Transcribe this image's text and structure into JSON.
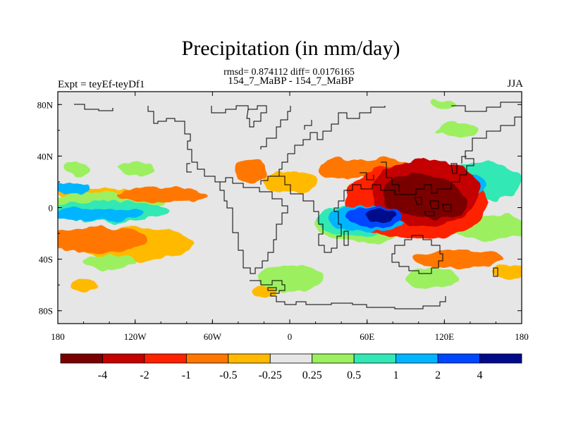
{
  "chart_data": {
    "type": "heatmap",
    "title": "Precipitation (in mm/day)",
    "stats_line": "rmsd= 0.874112 diff= 0.0176165",
    "subtitle": "154_7_MaBP - 154_7_MaBP",
    "left_label": "Expt = teyEf-teyDf1",
    "right_label": "JJA",
    "x_axis": {
      "range": [
        -180,
        180
      ],
      "ticks": [
        {
          "value": -180,
          "label": "180"
        },
        {
          "value": -120,
          "label": "120W"
        },
        {
          "value": -60,
          "label": "60W"
        },
        {
          "value": 0,
          "label": "0"
        },
        {
          "value": 60,
          "label": "60E"
        },
        {
          "value": 120,
          "label": "120E"
        },
        {
          "value": 180,
          "label": "180"
        }
      ]
    },
    "y_axis": {
      "range": [
        -90,
        90
      ],
      "ticks": [
        {
          "value": 80,
          "label": "80N"
        },
        {
          "value": 40,
          "label": "40N"
        },
        {
          "value": 0,
          "label": "0"
        },
        {
          "value": -40,
          "label": "40S"
        },
        {
          "value": -80,
          "label": "80S"
        }
      ]
    },
    "colorbar": {
      "colors": [
        "#7a0000",
        "#c40000",
        "#ff2200",
        "#ff7700",
        "#ffba00",
        "#e6e6e6",
        "#9cf060",
        "#33e8b4",
        "#00b5ff",
        "#0046ff",
        "#000b8a"
      ],
      "labels": [
        "-4",
        "-2",
        "-1",
        "-0.5",
        "-0.25",
        "0.25",
        "0.5",
        "1",
        "2",
        "4"
      ]
    },
    "background_color": "#e6e6e6",
    "anomalies": [
      {
        "lon": 100,
        "lat": 10,
        "rx": 28,
        "ry": 16,
        "level": 0
      },
      {
        "lon": 118,
        "lat": 5,
        "rx": 20,
        "ry": 14,
        "level": 0
      },
      {
        "lon": 105,
        "lat": 12,
        "rx": 42,
        "ry": 26,
        "level": 1
      },
      {
        "lon": 98,
        "lat": 5,
        "rx": 55,
        "ry": 30,
        "level": 2
      },
      {
        "lon": 75,
        "lat": 30,
        "rx": 30,
        "ry": 8,
        "level": 3
      },
      {
        "lon": 40,
        "lat": 30,
        "rx": 18,
        "ry": 8,
        "level": 3
      },
      {
        "lon": 0,
        "lat": 20,
        "rx": 22,
        "ry": 8,
        "level": 4
      },
      {
        "lon": -30,
        "lat": 28,
        "rx": 12,
        "ry": 8,
        "level": 3
      },
      {
        "lon": -140,
        "lat": 10,
        "rx": 40,
        "ry": 5,
        "level": 4
      },
      {
        "lon": -100,
        "lat": 10,
        "rx": 35,
        "ry": 6,
        "level": 3
      },
      {
        "lon": -150,
        "lat": -25,
        "rx": 40,
        "ry": 10,
        "level": 3
      },
      {
        "lon": -120,
        "lat": -28,
        "rx": 45,
        "ry": 13,
        "level": 4
      },
      {
        "lon": 130,
        "lat": -40,
        "rx": 35,
        "ry": 7,
        "level": 3
      },
      {
        "lon": 170,
        "lat": -50,
        "rx": 12,
        "ry": 6,
        "level": 4
      },
      {
        "lon": 155,
        "lat": -15,
        "rx": 30,
        "ry": 10,
        "level": 6
      },
      {
        "lon": 150,
        "lat": 20,
        "rx": 30,
        "ry": 15,
        "level": 7
      },
      {
        "lon": 140,
        "lat": 18,
        "rx": 12,
        "ry": 7,
        "level": 8
      },
      {
        "lon": 60,
        "lat": -13,
        "rx": 42,
        "ry": 14,
        "level": 6
      },
      {
        "lon": 55,
        "lat": -10,
        "rx": 35,
        "ry": 12,
        "level": 7
      },
      {
        "lon": 60,
        "lat": -8,
        "rx": 30,
        "ry": 10,
        "level": 8
      },
      {
        "lon": 65,
        "lat": -7,
        "rx": 22,
        "ry": 8,
        "level": 9
      },
      {
        "lon": 70,
        "lat": -6,
        "rx": 12,
        "ry": 5,
        "level": 10
      },
      {
        "lon": 60,
        "lat": 10,
        "rx": 15,
        "ry": 6,
        "level": 7
      },
      {
        "lon": -140,
        "lat": 5,
        "rx": 45,
        "ry": 7,
        "level": 6
      },
      {
        "lon": -140,
        "lat": -3,
        "rx": 45,
        "ry": 8,
        "level": 7
      },
      {
        "lon": -150,
        "lat": -5,
        "rx": 35,
        "ry": 5,
        "level": 8
      },
      {
        "lon": -170,
        "lat": 15,
        "rx": 15,
        "ry": 5,
        "level": 8
      },
      {
        "lon": -120,
        "lat": 30,
        "rx": 15,
        "ry": 5,
        "level": 6
      },
      {
        "lon": -165,
        "lat": 30,
        "rx": 10,
        "ry": 5,
        "level": 6
      },
      {
        "lon": -140,
        "lat": -42,
        "rx": 20,
        "ry": 5,
        "level": 6
      },
      {
        "lon": 0,
        "lat": -55,
        "rx": 25,
        "ry": 10,
        "level": 6
      },
      {
        "lon": 110,
        "lat": -55,
        "rx": 20,
        "ry": 8,
        "level": 6
      },
      {
        "lon": 130,
        "lat": 60,
        "rx": 15,
        "ry": 6,
        "level": 6
      },
      {
        "lon": 120,
        "lat": 80,
        "rx": 10,
        "ry": 3,
        "level": 6
      },
      {
        "lon": -20,
        "lat": -65,
        "rx": 10,
        "ry": 5,
        "level": 4
      },
      {
        "lon": -160,
        "lat": -60,
        "rx": 10,
        "ry": 5,
        "level": 4
      }
    ]
  }
}
